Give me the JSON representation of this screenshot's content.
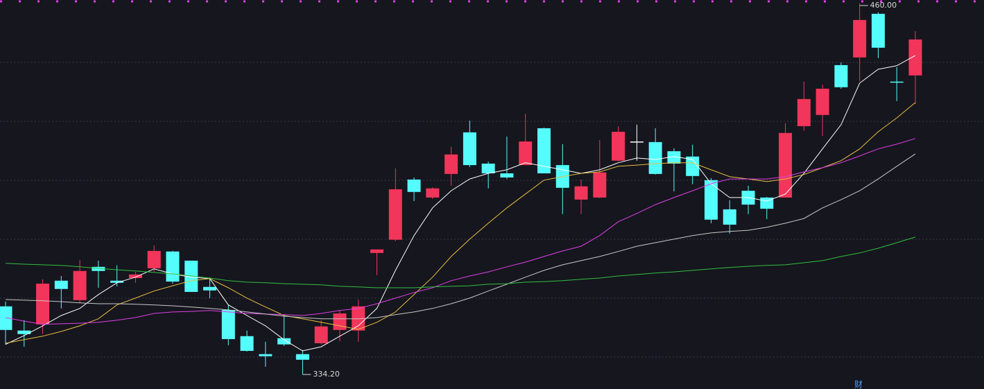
{
  "chart_data": {
    "type": "candlestick",
    "open": [
      357.3,
      349.1,
      351.2,
      366.0,
      359.4,
      370.7,
      366.0,
      366.9,
      370.2,
      375.9,
      372.8,
      363.9,
      356.1,
      347.2,
      341.1,
      346.5,
      341.1,
      344.8,
      349.3,
      349.1,
      375.4,
      379.9,
      400.3,
      394.2,
      402.2,
      416.3,
      405.7,
      402.4,
      405.2,
      417.7,
      405.2,
      393.5,
      394.2,
      406.7,
      413.2,
      413.0,
      409.9,
      408.1,
      400.1,
      390.2,
      396.5,
      394.2,
      394.2,
      418.4,
      422.2,
      439.1,
      441.7,
      456.5,
      433.5,
      435.6
    ],
    "high": [
      358.9,
      352.6,
      366.5,
      367.6,
      373.0,
      372.8,
      371.2,
      369.0,
      378.0,
      376.1,
      372.8,
      367.1,
      357.8,
      349.1,
      345.3,
      354.2,
      342.5,
      352.6,
      355.9,
      359.6,
      376.6,
      404.1,
      401.0,
      397.7,
      411.4,
      420.3,
      406.4,
      414.9,
      422.6,
      417.9,
      412.3,
      400.3,
      413.7,
      418.4,
      418.9,
      417.7,
      410.9,
      412.1,
      400.8,
      393.3,
      398.2,
      394.4,
      419.4,
      433.5,
      432.5,
      440.0,
      460.0,
      457.0,
      438.4,
      450.6
    ],
    "low": [
      344.4,
      343.6,
      347.9,
      356.6,
      358.5,
      363.6,
      364.1,
      365.3,
      369.0,
      365.0,
      362.2,
      360.1,
      344.1,
      342.0,
      336.8,
      343.9,
      334.2,
      344.4,
      345.5,
      345.3,
      367.9,
      379.4,
      393.0,
      393.7,
      398.2,
      404.5,
      397.3,
      400.5,
      405.2,
      402.4,
      388.6,
      388.6,
      394.0,
      406.4,
      406.7,
      402.0,
      396.3,
      398.7,
      385.5,
      382.0,
      388.6,
      386.9,
      394.2,
      416.8,
      415.1,
      431.1,
      433.7,
      441.5,
      426.9,
      425.9
    ],
    "close": [
      349.3,
      347.9,
      365.0,
      363.2,
      369.3,
      369.3,
      365.3,
      368.1,
      376.1,
      365.7,
      362.2,
      362.7,
      346.2,
      342.2,
      340.4,
      344.4,
      339.2,
      350.5,
      354.9,
      357.3,
      376.6,
      397.0,
      396.1,
      397.3,
      408.8,
      405.2,
      402.4,
      401.0,
      413.2,
      402.4,
      397.5,
      398.0,
      402.7,
      416.5,
      413.2,
      402.2,
      405.7,
      401.5,
      386.7,
      385.0,
      391.8,
      390.4,
      416.1,
      427.6,
      431.1,
      431.6,
      454.4,
      445.0,
      433.2,
      447.8
    ],
    "up_color": "#f2355a",
    "down_color": "#54fcfc",
    "flat_color": "#ffffff",
    "series": [
      {
        "color": "#ffffff",
        "values": [
          344.4,
          347.4,
          350.7,
          354.2,
          356.6,
          361.3,
          365.3,
          367.2,
          370.0,
          368.3,
          367.2,
          366.7,
          357.8,
          354.2,
          350.7,
          346.0,
          342.2,
          343.6,
          347.2,
          350.7,
          356.6,
          369.5,
          381.3,
          390.7,
          396.5,
          400.5,
          402.4,
          403.6,
          406.0,
          404.8,
          403.6,
          402.4,
          403.6,
          406.0,
          407.6,
          407.1,
          408.1,
          407.1,
          398.9,
          394.2,
          394.2,
          393.0,
          395.4,
          402.4,
          410.7,
          418.9,
          433.0,
          437.7,
          438.9,
          442.4
        ]
      },
      {
        "color": "#e8c040",
        "values": [
          344.8,
          346.0,
          347.2,
          348.8,
          350.7,
          353.1,
          357.8,
          360.1,
          362.5,
          364.3,
          366.0,
          366.7,
          363.6,
          360.1,
          357.1,
          354.2,
          353.1,
          351.9,
          350.7,
          349.5,
          351.9,
          355.4,
          361.3,
          367.2,
          374.2,
          380.1,
          385.5,
          390.7,
          395.4,
          400.1,
          401.3,
          402.4,
          402.9,
          404.8,
          405.2,
          405.7,
          406.0,
          406.0,
          403.6,
          401.3,
          400.5,
          399.6,
          400.5,
          402.0,
          404.3,
          406.7,
          410.7,
          416.5,
          421.2,
          426.4
        ]
      },
      {
        "color": "#e040e8",
        "values": [
          353.5,
          352.3,
          351.2,
          351.4,
          351.6,
          351.9,
          352.6,
          353.5,
          354.9,
          355.4,
          355.6,
          355.9,
          355.4,
          354.9,
          354.7,
          354.5,
          354.2,
          354.9,
          355.9,
          356.6,
          358.2,
          360.1,
          362.0,
          363.6,
          366.0,
          367.6,
          369.0,
          370.7,
          372.3,
          374.2,
          376.1,
          377.7,
          381.3,
          386.0,
          388.8,
          391.8,
          394.2,
          396.5,
          398.9,
          400.5,
          400.5,
          400.5,
          401.3,
          402.9,
          404.3,
          406.0,
          408.3,
          410.7,
          412.3,
          414.2
        ]
      },
      {
        "color": "#c8c8c8",
        "values": [
          359.6,
          359.4,
          359.2,
          358.9,
          358.5,
          358.2,
          358.2,
          358.0,
          357.8,
          357.5,
          357.1,
          356.6,
          356.1,
          355.4,
          354.7,
          354.0,
          353.5,
          353.1,
          353.1,
          353.1,
          353.5,
          354.5,
          355.4,
          356.6,
          358.2,
          360.1,
          362.5,
          364.8,
          367.2,
          369.5,
          371.4,
          372.8,
          374.2,
          375.9,
          377.7,
          378.9,
          380.1,
          381.3,
          382.2,
          382.7,
          383.1,
          384.1,
          385.5,
          387.1,
          390.7,
          393.5,
          396.5,
          400.5,
          404.8,
          409.0
        ]
      },
      {
        "color": "#30c040",
        "values": [
          371.9,
          371.6,
          371.4,
          371.2,
          370.7,
          370.2,
          369.7,
          369.3,
          368.8,
          368.3,
          367.6,
          366.9,
          366.0,
          365.5,
          365.3,
          365.0,
          364.8,
          364.6,
          364.1,
          363.9,
          363.6,
          363.6,
          363.6,
          363.9,
          364.1,
          364.3,
          364.8,
          365.0,
          365.5,
          365.7,
          366.0,
          366.5,
          366.9,
          367.6,
          368.1,
          368.6,
          369.0,
          369.5,
          370.0,
          370.5,
          370.9,
          371.2,
          371.4,
          372.1,
          372.8,
          374.2,
          375.4,
          377.0,
          378.9,
          380.8
        ]
      }
    ],
    "ylim": [
      329.28,
      461.18
    ],
    "annotations": [
      "460.00",
      "334.20"
    ]
  },
  "footer_text": "财"
}
